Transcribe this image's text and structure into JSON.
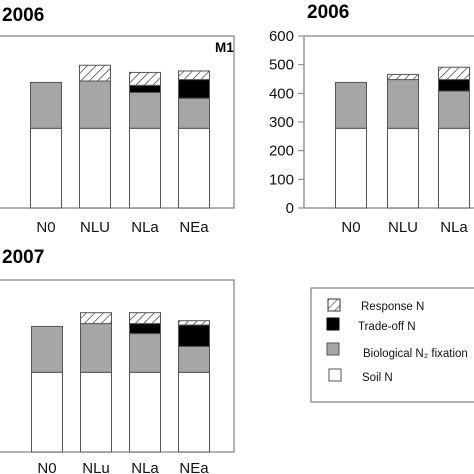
{
  "chart_data": [
    {
      "type": "bar",
      "stacked": true,
      "panel_title": "2006",
      "panel_label": "M1",
      "categories": [
        "N0",
        "NLU",
        "NLa",
        "NEa"
      ],
      "ylim": [
        0,
        600
      ],
      "show_y_ticks": false,
      "series": [
        {
          "key": "soil",
          "values": [
            278,
            278,
            278,
            278
          ]
        },
        {
          "key": "bio",
          "values": [
            160,
            165,
            125,
            105
          ]
        },
        {
          "key": "trade",
          "values": [
            0,
            0,
            25,
            65
          ]
        },
        {
          "key": "response",
          "values": [
            0,
            55,
            45,
            30
          ]
        }
      ]
    },
    {
      "type": "bar",
      "stacked": true,
      "panel_title": "2006",
      "categories": [
        "N0",
        "NLU",
        "NLa"
      ],
      "ylim": [
        0,
        600
      ],
      "yticks": [
        0,
        100,
        200,
        300,
        400,
        500,
        600
      ],
      "show_y_ticks": true,
      "series": [
        {
          "key": "soil",
          "values": [
            278,
            278,
            278
          ]
        },
        {
          "key": "bio",
          "values": [
            160,
            170,
            130
          ]
        },
        {
          "key": "trade",
          "values": [
            0,
            0,
            40
          ]
        },
        {
          "key": "response",
          "values": [
            0,
            18,
            43
          ]
        }
      ]
    },
    {
      "type": "bar",
      "stacked": true,
      "panel_title": "2007",
      "categories": [
        "N0",
        "NLu",
        "NLa",
        "NEa"
      ],
      "ylim": [
        0,
        600
      ],
      "show_y_ticks": false,
      "series": [
        {
          "key": "soil",
          "values": [
            278,
            278,
            278,
            278
          ]
        },
        {
          "key": "bio",
          "values": [
            160,
            170,
            135,
            90
          ]
        },
        {
          "key": "trade",
          "values": [
            0,
            0,
            35,
            75
          ]
        },
        {
          "key": "response",
          "values": [
            0,
            38,
            38,
            15
          ]
        }
      ]
    }
  ],
  "legend": {
    "items": [
      {
        "key": "response",
        "label": "Response N"
      },
      {
        "key": "trade",
        "label": "Trade-off N"
      },
      {
        "key": "bio",
        "label": "Biological N₂ fixation"
      },
      {
        "key": "soil",
        "label": "Soil N"
      }
    ]
  },
  "colors": {
    "soil": "#ffffff",
    "bio": "#a6a6a6",
    "trade": "#000000",
    "response": "#ffffff",
    "frame": "#7f7f7f",
    "bar_edge": "#555555"
  }
}
